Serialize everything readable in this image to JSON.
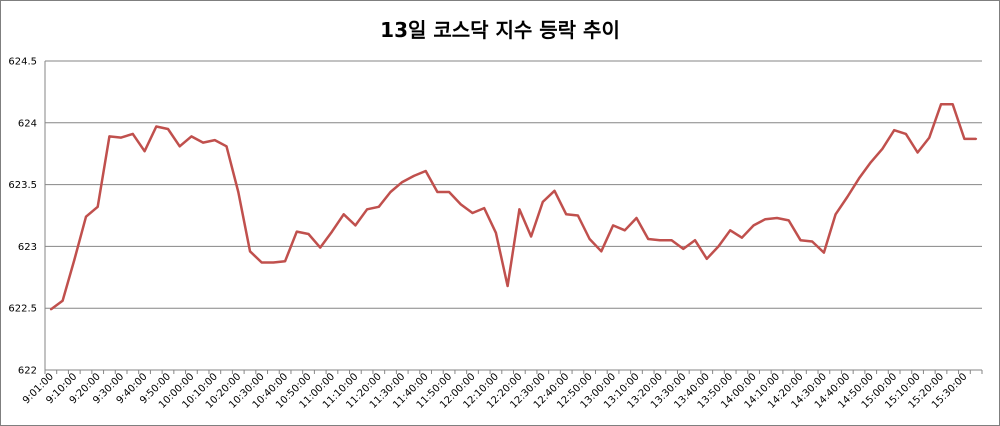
{
  "chart_data": {
    "type": "line",
    "title": "13일 코스닥 지수 등락 추이",
    "xlabel": "",
    "ylabel": "",
    "ylim": [
      622,
      624.5
    ],
    "yticks": [
      "622",
      "622.5",
      "623",
      "623.5",
      "624",
      "624.5"
    ],
    "grid": true,
    "legend": "none",
    "line_color": "#c0504d",
    "x": [
      "9:01:00",
      "9:05:00",
      "9:10:00",
      "9:15:00",
      "9:20:00",
      "9:25:00",
      "9:30:00",
      "9:35:00",
      "9:40:00",
      "9:45:00",
      "9:50:00",
      "9:55:00",
      "10:00:00",
      "10:05:00",
      "10:10:00",
      "10:15:00",
      "10:20:00",
      "10:25:00",
      "10:30:00",
      "10:35:00",
      "10:40:00",
      "10:45:00",
      "10:50:00",
      "10:55:00",
      "11:00:00",
      "11:05:00",
      "11:10:00",
      "11:15:00",
      "11:20:00",
      "11:25:00",
      "11:30:00",
      "11:35:00",
      "11:40:00",
      "11:45:00",
      "11:50:00",
      "11:55:00",
      "12:00:00",
      "12:05:00",
      "12:10:00",
      "12:15:00",
      "12:20:00",
      "12:25:00",
      "12:30:00",
      "12:35:00",
      "12:40:00",
      "12:45:00",
      "12:50:00",
      "12:55:00",
      "13:00:00",
      "13:05:00",
      "13:10:00",
      "13:15:00",
      "13:20:00",
      "13:25:00",
      "13:30:00",
      "13:35:00",
      "13:40:00",
      "13:45:00",
      "13:50:00",
      "13:55:00",
      "14:00:00",
      "14:05:00",
      "14:10:00",
      "14:15:00",
      "14:20:00",
      "14:25:00",
      "14:30:00",
      "14:35:00",
      "14:40:00",
      "14:45:00",
      "14:50:00",
      "14:55:00",
      "15:00:00",
      "15:05:00",
      "15:10:00",
      "15:15:00",
      "15:20:00",
      "15:25:00",
      "15:30:00",
      "15:35:00"
    ],
    "xtick_labels": [
      "9:01:00",
      "9:10:00",
      "9:20:00",
      "9:30:00",
      "9:40:00",
      "9:50:00",
      "10:00:00",
      "10:10:00",
      "10:20:00",
      "10:30:00",
      "10:40:00",
      "10:50:00",
      "11:00:00",
      "11:10:00",
      "11:20:00",
      "11:30:00",
      "11:40:00",
      "11:50:00",
      "12:00:00",
      "12:10:00",
      "12:20:00",
      "12:30:00",
      "12:40:00",
      "12:50:00",
      "13:00:00",
      "13:10:00",
      "13:20:00",
      "13:30:00",
      "13:40:00",
      "13:50:00",
      "14:00:00",
      "14:10:00",
      "14:20:00",
      "14:30:00",
      "14:40:00",
      "14:50:00",
      "15:00:00",
      "15:10:00",
      "15:20:00",
      "15:30:00"
    ],
    "series": [
      {
        "values": [
          622.49,
          622.56,
          622.89,
          623.24,
          623.32,
          623.89,
          623.88,
          623.91,
          623.77,
          623.97,
          623.95,
          623.81,
          623.89,
          623.84,
          623.86,
          623.81,
          623.44,
          622.96,
          622.87,
          622.87,
          622.88,
          623.12,
          623.1,
          622.99,
          623.12,
          623.26,
          623.17,
          623.3,
          623.32,
          623.44,
          623.52,
          623.57,
          623.61,
          623.44,
          623.44,
          623.34,
          623.27,
          623.31,
          623.11,
          622.68,
          623.3,
          623.08,
          623.36,
          623.45,
          623.26,
          623.25,
          623.06,
          622.96,
          623.17,
          623.13,
          623.23,
          623.06,
          623.05,
          623.05,
          622.98,
          623.05,
          622.9,
          623.0,
          623.13,
          623.07,
          623.17,
          623.22,
          623.23,
          623.21,
          623.05,
          623.04,
          622.95,
          623.26,
          623.4,
          623.55,
          623.68,
          623.79,
          623.94,
          623.91,
          623.76,
          623.88,
          624.15,
          624.15,
          623.87,
          623.87
        ]
      }
    ]
  }
}
